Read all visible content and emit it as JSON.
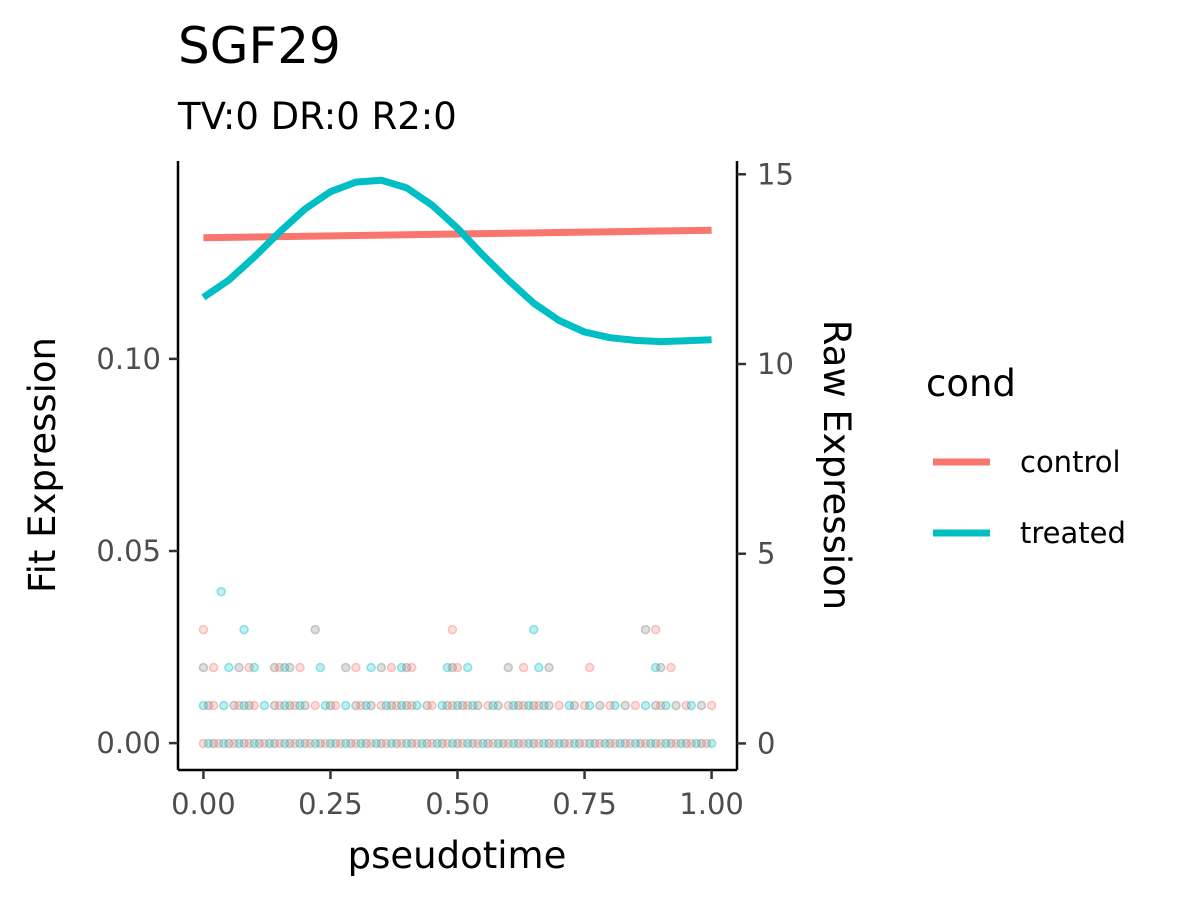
{
  "chart_data": {
    "type": "line",
    "title": "SGF29",
    "subtitle": "TV:0 DR:0 R2:0",
    "xlabel": "pseudotime",
    "ylabel_left": "Fit Expression",
    "ylabel_right": "Raw Expression",
    "xlim": [
      -0.05,
      1.05
    ],
    "ylim_left": [
      -0.007,
      0.1515
    ],
    "ylim_right": [
      -0.7,
      15.35
    ],
    "x_ticks": [
      "0.00",
      "0.25",
      "0.50",
      "0.75",
      "1.00"
    ],
    "y_left_ticks": [
      "0.00",
      "0.05",
      "0.10"
    ],
    "y_right_ticks": [
      "0",
      "5",
      "10",
      "15"
    ],
    "legend": {
      "title": "cond",
      "position": "right"
    },
    "series": [
      {
        "name": "control",
        "color": "#F8766D",
        "x": [
          0,
          0.25,
          0.5,
          0.75,
          1.0
        ],
        "y": [
          0.1315,
          0.132,
          0.1325,
          0.133,
          0.1335
        ]
      },
      {
        "name": "treated",
        "color": "#00BFC4",
        "x": [
          0,
          0.05,
          0.1,
          0.15,
          0.2,
          0.25,
          0.3,
          0.35,
          0.4,
          0.45,
          0.5,
          0.55,
          0.6,
          0.65,
          0.7,
          0.75,
          0.8,
          0.85,
          0.9,
          0.95,
          1.0
        ],
        "y": [
          0.116,
          0.1205,
          0.1265,
          0.133,
          0.139,
          0.1435,
          0.146,
          0.1465,
          0.1445,
          0.14,
          0.134,
          0.127,
          0.1205,
          0.1145,
          0.11,
          0.107,
          0.1055,
          0.1048,
          0.1045,
          0.1047,
          0.105
        ]
      }
    ],
    "raw_points": {
      "colors": [
        "#F8766D",
        "#00BFC4",
        "#808080"
      ],
      "levels": [
        {
          "y": 0,
          "x": [
            0,
            0.01,
            0.02,
            0.03,
            0.04,
            0.05,
            0.06,
            0.07,
            0.08,
            0.09,
            0.1,
            0.11,
            0.12,
            0.13,
            0.14,
            0.15,
            0.16,
            0.17,
            0.18,
            0.19,
            0.2,
            0.21,
            0.22,
            0.23,
            0.24,
            0.25,
            0.26,
            0.27,
            0.28,
            0.29,
            0.3,
            0.31,
            0.32,
            0.33,
            0.34,
            0.35,
            0.36,
            0.37,
            0.38,
            0.39,
            0.4,
            0.41,
            0.42,
            0.43,
            0.44,
            0.45,
            0.46,
            0.47,
            0.48,
            0.49,
            0.5,
            0.51,
            0.52,
            0.53,
            0.54,
            0.55,
            0.56,
            0.57,
            0.58,
            0.59,
            0.6,
            0.61,
            0.62,
            0.63,
            0.64,
            0.65,
            0.66,
            0.67,
            0.68,
            0.69,
            0.7,
            0.71,
            0.72,
            0.73,
            0.74,
            0.75,
            0.76,
            0.77,
            0.78,
            0.79,
            0.8,
            0.81,
            0.82,
            0.83,
            0.84,
            0.85,
            0.86,
            0.87,
            0.88,
            0.89,
            0.9,
            0.91,
            0.92,
            0.93,
            0.94,
            0.95,
            0.96,
            0.97,
            0.98,
            0.99,
            1.0
          ]
        },
        {
          "y": 1,
          "x": [
            0,
            0.01,
            0.02,
            0.04,
            0.06,
            0.07,
            0.08,
            0.09,
            0.1,
            0.12,
            0.14,
            0.15,
            0.16,
            0.17,
            0.18,
            0.19,
            0.2,
            0.22,
            0.24,
            0.25,
            0.26,
            0.28,
            0.3,
            0.31,
            0.32,
            0.33,
            0.35,
            0.36,
            0.37,
            0.38,
            0.39,
            0.4,
            0.41,
            0.42,
            0.44,
            0.45,
            0.47,
            0.48,
            0.49,
            0.5,
            0.51,
            0.52,
            0.53,
            0.54,
            0.56,
            0.57,
            0.58,
            0.6,
            0.61,
            0.62,
            0.63,
            0.64,
            0.65,
            0.66,
            0.67,
            0.68,
            0.7,
            0.72,
            0.73,
            0.75,
            0.76,
            0.78,
            0.8,
            0.81,
            0.83,
            0.85,
            0.87,
            0.89,
            0.9,
            0.91,
            0.93,
            0.95,
            0.96,
            0.98,
            1.0
          ]
        },
        {
          "y": 2,
          "x": [
            0.0,
            0.02,
            0.05,
            0.07,
            0.09,
            0.1,
            0.14,
            0.15,
            0.16,
            0.17,
            0.19,
            0.23,
            0.28,
            0.3,
            0.33,
            0.35,
            0.37,
            0.39,
            0.4,
            0.41,
            0.48,
            0.49,
            0.5,
            0.52,
            0.6,
            0.63,
            0.66,
            0.68,
            0.76,
            0.89,
            0.9,
            0.92
          ]
        },
        {
          "y": 3,
          "x": [
            0.0,
            0.08,
            0.22,
            0.49,
            0.65,
            0.87,
            0.89
          ]
        },
        {
          "y": 4,
          "x": [
            0.035
          ]
        }
      ]
    }
  }
}
